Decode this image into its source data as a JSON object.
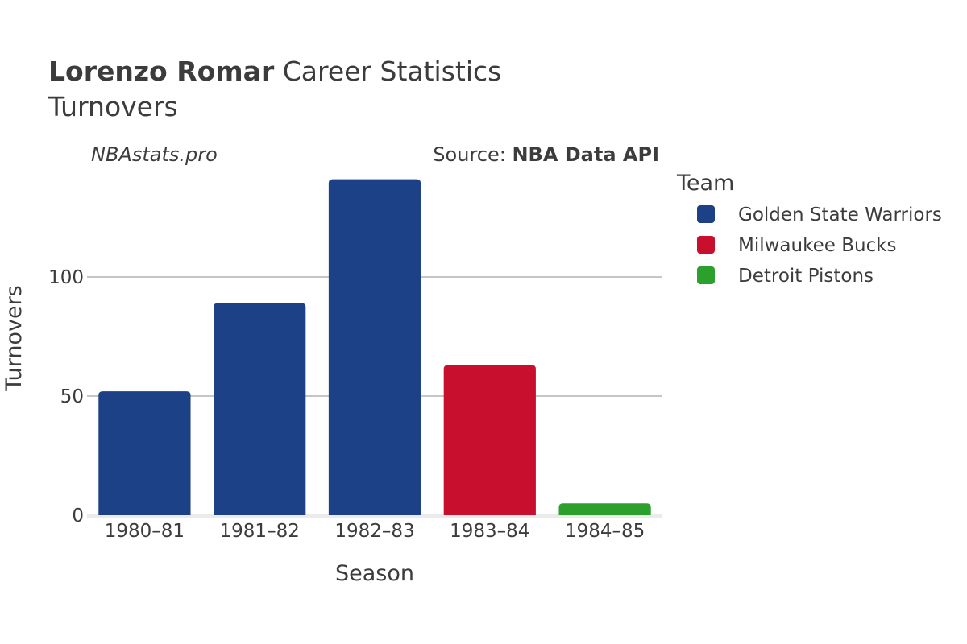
{
  "header": {
    "title_bold": "Lorenzo Romar",
    "title_rest": " Career Statistics",
    "subtitle": "Turnovers",
    "watermark": "NBAstats.pro",
    "source_prefix": "Source: ",
    "source_bold": "NBA Data API"
  },
  "legend": {
    "title": "Team",
    "placement": "right",
    "items": [
      {
        "label": "Golden State Warriors",
        "color": "#1c4187"
      },
      {
        "label": "Milwaukee Bucks",
        "color": "#c8102e"
      },
      {
        "label": "Detroit Pistons",
        "color": "#2ca02c"
      }
    ]
  },
  "chart_data": {
    "type": "bar",
    "title": "Lorenzo Romar Career Statistics",
    "subtitle": "Turnovers",
    "xlabel": "Season",
    "ylabel": "Turnovers",
    "categories": [
      "1980–81",
      "1981–82",
      "1982–83",
      "1983–84",
      "1984–85"
    ],
    "values": [
      52,
      89,
      141,
      63,
      5
    ],
    "teams": [
      "Golden State Warriors",
      "Golden State Warriors",
      "Golden State Warriors",
      "Milwaukee Bucks",
      "Detroit Pistons"
    ],
    "bar_colors": [
      "#1c4187",
      "#1c4187",
      "#1c4187",
      "#c8102e",
      "#2ca02c"
    ],
    "yticks": [
      0,
      50,
      100
    ],
    "ytick_labels": [
      "0",
      "50",
      "100"
    ],
    "ylim": [
      0,
      150
    ],
    "grid": true
  }
}
